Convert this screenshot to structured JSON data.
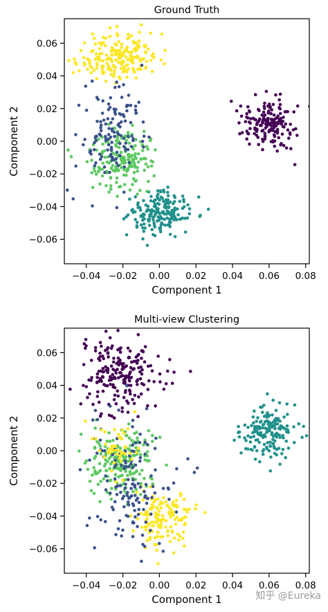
{
  "watermark": "知乎 @Eureka",
  "palette": {
    "purple": "#440154",
    "blue": "#3b528b",
    "teal": "#21918c",
    "green": "#5ec962",
    "yellow": "#fde725"
  },
  "chart_data": [
    {
      "type": "scatter",
      "title": "Ground Truth",
      "xlabel": "Component 1",
      "ylabel": "Component 2",
      "xlim": [
        -0.052,
        0.082
      ],
      "ylim": [
        -0.075,
        0.075
      ],
      "xticks": [
        -0.04,
        -0.02,
        0.0,
        0.02,
        0.04,
        0.06,
        0.08
      ],
      "xtick_labels": [
        "−0.04",
        "−0.02",
        "0.00",
        "0.02",
        "0.04",
        "0.06",
        "0.08"
      ],
      "yticks": [
        -0.06,
        -0.04,
        -0.02,
        0.0,
        0.02,
        0.04,
        0.06
      ],
      "ytick_labels": [
        "−0.06",
        "−0.04",
        "−0.02",
        "0.00",
        "0.02",
        "0.04",
        "0.06"
      ],
      "grid": false,
      "clusters": [
        {
          "color": "purple",
          "center": [
            0.06,
            0.011
          ],
          "spread": [
            0.0075,
            0.0078
          ],
          "n": 170
        },
        {
          "color": "yellow",
          "center": [
            -0.022,
            0.052
          ],
          "spread": [
            0.0115,
            0.0075
          ],
          "n": 200
        },
        {
          "color": "teal",
          "center": [
            0.001,
            -0.044
          ],
          "spread": [
            0.0085,
            0.0072
          ],
          "n": 190
        },
        {
          "color": "green",
          "center": [
            -0.021,
            -0.012
          ],
          "spread": [
            0.0085,
            0.0095
          ],
          "n": 180
        },
        {
          "color": "blue",
          "center": [
            -0.025,
            0.005
          ],
          "spread": [
            0.0095,
            0.0145
          ],
          "n": 130
        }
      ]
    },
    {
      "type": "scatter",
      "title": "Multi-view Clustering",
      "xlabel": "Component 1",
      "ylabel": "Component 2",
      "xlim": [
        -0.052,
        0.082
      ],
      "ylim": [
        -0.075,
        0.075
      ],
      "xticks": [
        -0.04,
        -0.02,
        0.0,
        0.02,
        0.04,
        0.06,
        0.08
      ],
      "xtick_labels": [
        "−0.04",
        "−0.02",
        "0.00",
        "0.02",
        "0.04",
        "0.06",
        "0.08"
      ],
      "yticks": [
        -0.06,
        -0.04,
        -0.02,
        0.0,
        0.02,
        0.04,
        0.06
      ],
      "ytick_labels": [
        "−0.06",
        "−0.04",
        "−0.02",
        "0.00",
        "0.02",
        "0.04",
        "0.06"
      ],
      "grid": false,
      "clusters": [
        {
          "color": "teal",
          "center": [
            0.06,
            0.011
          ],
          "spread": [
            0.0075,
            0.0078
          ],
          "n": 170
        },
        {
          "color": "purple",
          "center": [
            -0.021,
            0.048
          ],
          "spread": [
            0.0115,
            0.0105
          ],
          "n": 210
        },
        {
          "color": "yellow",
          "center": [
            0.001,
            -0.041
          ],
          "spread": [
            0.0085,
            0.008
          ],
          "n": 150
        },
        {
          "color": "green",
          "center": [
            -0.021,
            -0.006
          ],
          "spread": [
            0.009,
            0.011
          ],
          "n": 200
        },
        {
          "color": "blue",
          "center": [
            -0.017,
            -0.02
          ],
          "spread": [
            0.012,
            0.019
          ],
          "n": 150
        },
        {
          "color": "yellow",
          "center": [
            -0.024,
            0.002
          ],
          "spread": [
            0.007,
            0.009
          ],
          "n": 45
        }
      ]
    }
  ]
}
